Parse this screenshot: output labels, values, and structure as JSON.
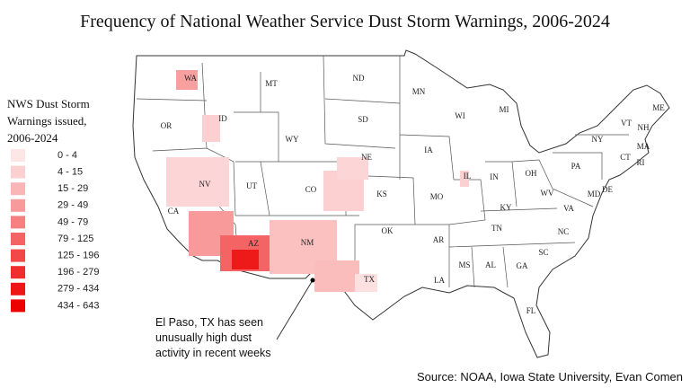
{
  "title": "Frequency of National Weather Service Dust Storm Warnings, 2006-2024",
  "legend": {
    "title": [
      "NWS Dust Storm",
      "Warnings issued,",
      "2006-2024"
    ],
    "bins": [
      {
        "label": "0 - 4",
        "color": "#fde6e6"
      },
      {
        "label": "4 - 15",
        "color": "#fcd0d0"
      },
      {
        "label": "15 - 29",
        "color": "#fab6b6"
      },
      {
        "label": "29 - 49",
        "color": "#f89a9a"
      },
      {
        "label": "49 - 79",
        "color": "#f67f7f"
      },
      {
        "label": "79 - 125",
        "color": "#f46464"
      },
      {
        "label": "125 - 196",
        "color": "#f24848"
      },
      {
        "label": "196 - 279",
        "color": "#f02e2e"
      },
      {
        "label": "279 - 434",
        "color": "#ee1616"
      },
      {
        "label": "434 - 643",
        "color": "#ec0000"
      }
    ]
  },
  "states": [
    "WA",
    "OR",
    "CA",
    "NV",
    "ID",
    "MT",
    "WY",
    "UT",
    "AZ",
    "CO",
    "NM",
    "ND",
    "SD",
    "NE",
    "KS",
    "OK",
    "TX",
    "MN",
    "IA",
    "MO",
    "AR",
    "LA",
    "WI",
    "IL",
    "MS",
    "MI",
    "IN",
    "KY",
    "TN",
    "AL",
    "OH",
    "GA",
    "FL",
    "SC",
    "NC",
    "VA",
    "WV",
    "PA",
    "NY",
    "MD",
    "DE",
    "CT",
    "RI",
    "MA",
    "VT",
    "NH",
    "ME"
  ],
  "annotation": [
    "El Paso, TX has seen",
    "unusually high dust",
    "activity in recent weeks"
  ],
  "source": "Source: NOAA, Iowa State University, Evan Comen"
}
